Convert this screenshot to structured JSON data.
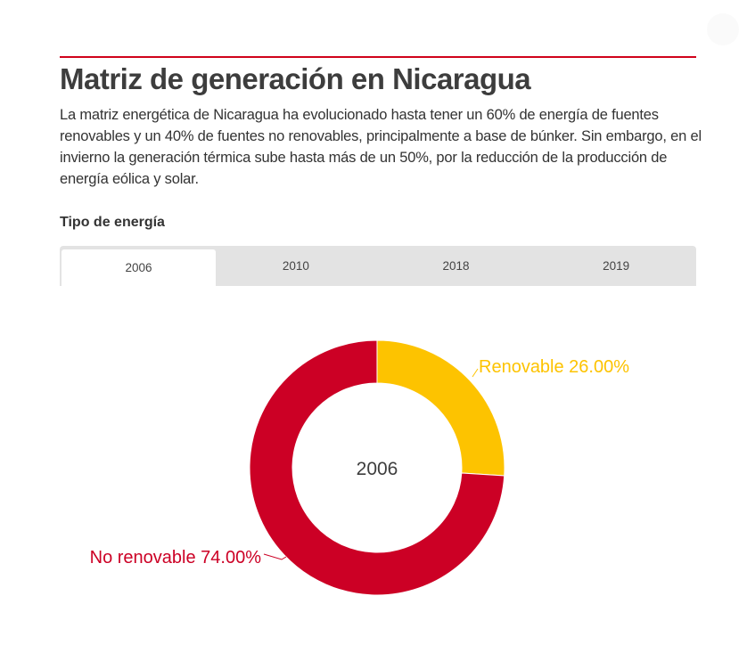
{
  "page": {
    "title": "Matriz de generación en Nicaragua",
    "description": "La matriz energética de Nicaragua ha evolucionado hasta tener un 60% de energía de fuentes renovables y un 40% de fuentes no renovables, principalmente a base de búnker. Sin embargo, en el invierno la generación térmica sube hasta más de un 50%, por la reducción de la producción de energía eólica y solar.",
    "section_label": "Tipo de energía",
    "accent_color": "#d0021b"
  },
  "tabs": [
    {
      "label": "2006",
      "active": true
    },
    {
      "label": "2010",
      "active": false
    },
    {
      "label": "2018",
      "active": false
    },
    {
      "label": "2019",
      "active": false
    }
  ],
  "chart_data": {
    "type": "pie",
    "subtype": "donut",
    "center_label": "2006",
    "slices": [
      {
        "name": "Renovable",
        "value": 26.0,
        "label": "Renovable 26.00%",
        "color": "#fdc300"
      },
      {
        "name": "No renovable",
        "value": 74.0,
        "label": "No renovable 74.00%",
        "color": "#cc0025"
      }
    ]
  }
}
